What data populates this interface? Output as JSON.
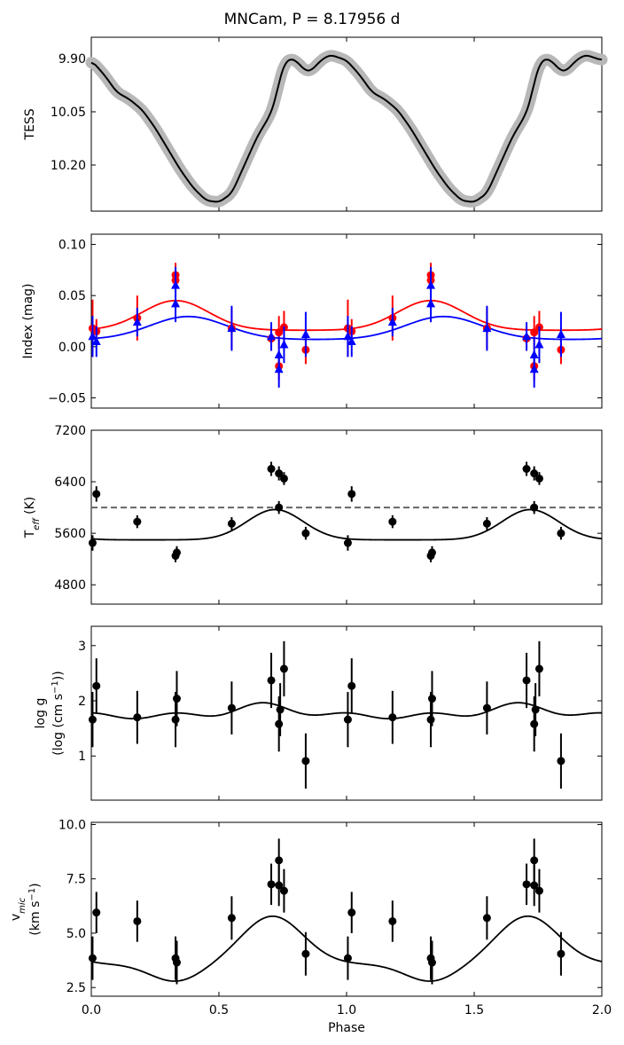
{
  "chart_data": {
    "title": "MNCam, P = 8.17956 d",
    "type": "scatter",
    "xlabel": "Phase",
    "xlim": [
      0.0,
      2.0
    ],
    "xticks": [
      0.0,
      0.5,
      1.0,
      1.5,
      2.0
    ],
    "xtick_labels": [
      "0.0",
      "0.5",
      "1.0",
      "1.5",
      "2.0"
    ],
    "panels": [
      {
        "id": "tess",
        "ylabel": "TESS",
        "ylim": [
          10.33,
          9.84
        ],
        "inverted": true,
        "yticks": [
          9.9,
          10.05,
          10.2
        ],
        "ytick_labels": [
          "9.90",
          "10.05",
          "10.20"
        ],
        "light_curve": {
          "phase": [
            0.0,
            0.05,
            0.1,
            0.15,
            0.2,
            0.25,
            0.3,
            0.35,
            0.4,
            0.45,
            0.5,
            0.55,
            0.6,
            0.65,
            0.7,
            0.72,
            0.74,
            0.76,
            0.78,
            0.8,
            0.82,
            0.84,
            0.86,
            0.88,
            0.9,
            0.92,
            0.94,
            0.96,
            0.98,
            1.0
          ],
          "mag": [
            9.905,
            9.945,
            9.995,
            10.015,
            10.045,
            10.095,
            10.155,
            10.215,
            10.265,
            10.3,
            10.305,
            10.28,
            10.2,
            10.12,
            10.06,
            10.02,
            9.95,
            9.91,
            9.9,
            9.905,
            9.92,
            9.935,
            9.935,
            9.92,
            9.905,
            9.895,
            9.89,
            9.895,
            9.9,
            9.905
          ],
          "line_color": "#000000",
          "scatter_color": "#b8b8b8"
        }
      },
      {
        "id": "index",
        "ylabel": "Index (mag)",
        "ylim": [
          -0.06,
          0.11
        ],
        "yticks": [
          0.1,
          0.05,
          0.0,
          -0.05
        ],
        "ytick_labels": [
          "0.10",
          "0.05",
          "0.00",
          "−0.05"
        ],
        "series": [
          {
            "name": "red-index",
            "color": "#ff0000",
            "marker": "circle",
            "fit": {
              "mean": 0.0335,
              "amp": 0.029,
              "peak_phase": 0.33,
              "width": 0.13
            },
            "points": [
              {
                "x": 0.005,
                "y": 0.018,
                "err": 0.028
              },
              {
                "x": 0.02,
                "y": 0.015,
                "err": 0.012
              },
              {
                "x": 0.18,
                "y": 0.028,
                "err": 0.022
              },
              {
                "x": 0.33,
                "y": 0.07,
                "err": 0.012
              },
              {
                "x": 0.33,
                "y": 0.065,
                "err": 0.012
              },
              {
                "x": 0.55,
                "y": 0.018,
                "err": 0.02
              },
              {
                "x": 0.705,
                "y": 0.008,
                "err": 0.012
              },
              {
                "x": 0.735,
                "y": -0.019,
                "err": 0.014
              },
              {
                "x": 0.735,
                "y": 0.014,
                "err": 0.016
              },
              {
                "x": 0.755,
                "y": 0.019,
                "err": 0.016
              },
              {
                "x": 0.84,
                "y": -0.003,
                "err": 0.014
              }
            ]
          },
          {
            "name": "blue-index",
            "color": "#0000ff",
            "marker": "triangle",
            "fit": {
              "mean": 0.0205,
              "amp": 0.0225,
              "peak_phase": 0.38,
              "width": 0.15
            },
            "points": [
              {
                "x": 0.005,
                "y": 0.01,
                "err": 0.02
              },
              {
                "x": 0.02,
                "y": 0.005,
                "err": 0.015
              },
              {
                "x": 0.18,
                "y": 0.024,
                "err": 0.014
              },
              {
                "x": 0.33,
                "y": 0.06,
                "err": 0.018
              },
              {
                "x": 0.33,
                "y": 0.042,
                "err": 0.018
              },
              {
                "x": 0.55,
                "y": 0.018,
                "err": 0.022
              },
              {
                "x": 0.705,
                "y": 0.01,
                "err": 0.014
              },
              {
                "x": 0.735,
                "y": -0.022,
                "err": 0.018
              },
              {
                "x": 0.735,
                "y": -0.008,
                "err": 0.018
              },
              {
                "x": 0.755,
                "y": 0.002,
                "err": 0.018
              },
              {
                "x": 0.84,
                "y": 0.012,
                "err": 0.022
              }
            ]
          }
        ]
      },
      {
        "id": "teff",
        "ylabel": "T$eff (K)",
        "ylabel_main": "T",
        "ylabel_sub": "eff",
        "ylabel_unit": " (K)",
        "ylim": [
          4500,
          7200
        ],
        "yticks": [
          7200,
          6400,
          5600,
          4800
        ],
        "ytick_labels": [
          "7200",
          "6400",
          "5600",
          "4800"
        ],
        "reference_line": {
          "y": 6000,
          "style": "dashed",
          "color": "#666666"
        },
        "fit": {
          "mean": 5780,
          "amp": 470,
          "peak_phase": 0.72,
          "width": 0.11
        },
        "points": [
          {
            "x": 0.005,
            "y": 5450,
            "err": 120
          },
          {
            "x": 0.02,
            "y": 6210,
            "err": 120
          },
          {
            "x": 0.18,
            "y": 5780,
            "err": 100
          },
          {
            "x": 0.33,
            "y": 5250,
            "err": 100
          },
          {
            "x": 0.335,
            "y": 5300,
            "err": 100
          },
          {
            "x": 0.55,
            "y": 5750,
            "err": 100
          },
          {
            "x": 0.705,
            "y": 6600,
            "err": 110
          },
          {
            "x": 0.735,
            "y": 6530,
            "err": 110
          },
          {
            "x": 0.735,
            "y": 6000,
            "err": 100
          },
          {
            "x": 0.755,
            "y": 6450,
            "err": 100
          },
          {
            "x": 0.84,
            "y": 5600,
            "err": 100
          }
        ],
        "color": "#000000"
      },
      {
        "id": "logg",
        "ylabel": "log g (log (cm s⁻¹))",
        "ylabel_line1": "log g",
        "ylabel_line2": "(log (cm s",
        "ylabel_line2_sup": "−1",
        "ylabel_line2_end": "))",
        "ylim": [
          0.2,
          3.35
        ],
        "yticks": [
          3,
          2,
          1
        ],
        "ytick_labels": [
          "3",
          "2",
          "1"
        ],
        "fit": {
          "mean": 1.84,
          "amp": 0.19,
          "peak_phase": 0.68,
          "width": 0.12,
          "ripple": 0.05
        },
        "points": [
          {
            "x": 0.005,
            "y": 1.66,
            "err": 0.5
          },
          {
            "x": 0.02,
            "y": 2.27,
            "err": 0.5
          },
          {
            "x": 0.18,
            "y": 1.7,
            "err": 0.48
          },
          {
            "x": 0.33,
            "y": 1.66,
            "err": 0.5
          },
          {
            "x": 0.335,
            "y": 2.04,
            "err": 0.5
          },
          {
            "x": 0.55,
            "y": 1.87,
            "err": 0.48
          },
          {
            "x": 0.705,
            "y": 2.37,
            "err": 0.5
          },
          {
            "x": 0.735,
            "y": 1.58,
            "err": 0.5
          },
          {
            "x": 0.74,
            "y": 1.84,
            "err": 0.48
          },
          {
            "x": 0.755,
            "y": 2.58,
            "err": 0.5
          },
          {
            "x": 0.84,
            "y": 0.91,
            "err": 0.5
          }
        ],
        "color": "#000000"
      },
      {
        "id": "vmic",
        "ylabel": "v$mic (km s⁻¹)",
        "ylabel_main": "v",
        "ylabel_sub": "mic",
        "ylabel_line2": "(km s",
        "ylabel_line2_sup": "−1",
        "ylabel_line2_end": ")",
        "ylim": [
          2.1,
          10.1
        ],
        "yticks": [
          10.0,
          7.5,
          5.0,
          2.5
        ],
        "ytick_labels": [
          "10.0",
          "7.5",
          "5.0",
          "2.5"
        ],
        "fit": {
          "mean": 4.9,
          "amp": 2.2,
          "peak_phase": 0.71,
          "width": 0.12,
          "dip_amp": 0.8,
          "dip_phase": 0.33
        },
        "points": [
          {
            "x": 0.005,
            "y": 3.85,
            "err": 1.0
          },
          {
            "x": 0.02,
            "y": 5.95,
            "err": 0.95
          },
          {
            "x": 0.18,
            "y": 5.55,
            "err": 0.95
          },
          {
            "x": 0.33,
            "y": 3.85,
            "err": 1.0
          },
          {
            "x": 0.335,
            "y": 3.65,
            "err": 1.0
          },
          {
            "x": 0.55,
            "y": 5.7,
            "err": 1.0
          },
          {
            "x": 0.705,
            "y": 7.25,
            "err": 0.95
          },
          {
            "x": 0.735,
            "y": 8.35,
            "err": 1.0
          },
          {
            "x": 0.735,
            "y": 7.2,
            "err": 0.95
          },
          {
            "x": 0.755,
            "y": 6.95,
            "err": 1.0
          },
          {
            "x": 0.84,
            "y": 4.05,
            "err": 1.0
          }
        ],
        "color": "#000000"
      }
    ]
  }
}
